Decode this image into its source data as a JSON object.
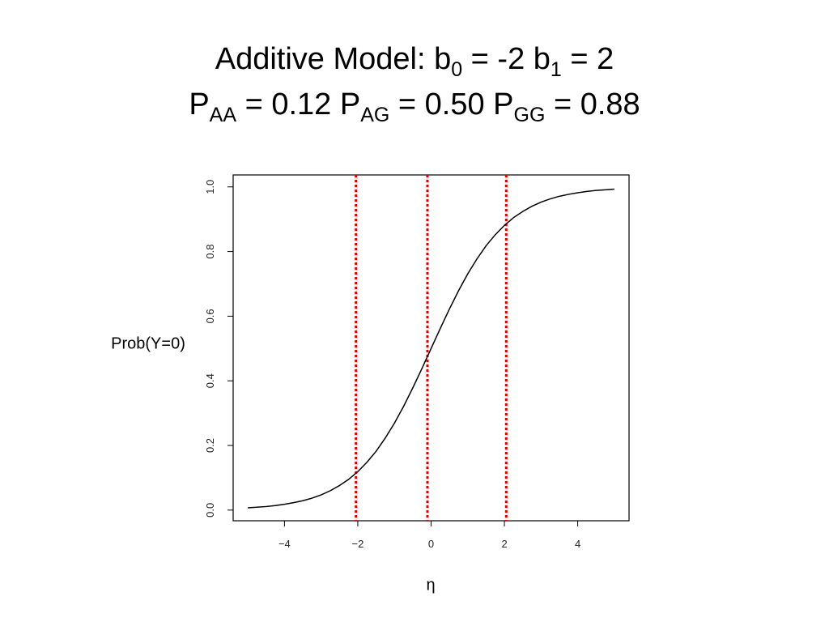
{
  "chart_data": {
    "type": "line",
    "title": [
      [
        "Additive Model: b",
        "0",
        " = -2 b",
        "1",
        " = 2"
      ],
      [
        "P",
        "AA",
        " = 0.12 P",
        "AG",
        " = 0.50 P",
        "GG",
        " = 0.88"
      ]
    ],
    "x_label": "η",
    "y_label": "Prob(Y=0)",
    "x": [
      -5,
      -4.75,
      -4.5,
      -4.25,
      -4,
      -3.75,
      -3.5,
      -3.25,
      -3,
      -2.75,
      -2.5,
      -2.25,
      -2,
      -1.75,
      -1.5,
      -1.25,
      -1,
      -0.75,
      -0.5,
      -0.25,
      0,
      0.25,
      0.5,
      0.75,
      1,
      1.25,
      1.5,
      1.75,
      2,
      2.25,
      2.5,
      2.75,
      3,
      3.25,
      3.5,
      3.75,
      4,
      4.25,
      4.5,
      4.75,
      5
    ],
    "series": [
      {
        "color": "#000000",
        "values": [
          0.007,
          0.009,
          0.011,
          0.014,
          0.018,
          0.023,
          0.029,
          0.037,
          0.047,
          0.06,
          0.076,
          0.095,
          0.119,
          0.148,
          0.182,
          0.223,
          0.269,
          0.321,
          0.378,
          0.438,
          0.5,
          0.562,
          0.622,
          0.679,
          0.731,
          0.777,
          0.818,
          0.852,
          0.881,
          0.905,
          0.924,
          0.94,
          0.953,
          0.963,
          0.971,
          0.977,
          0.982,
          0.986,
          0.989,
          0.991,
          0.993
        ]
      }
    ],
    "vlines": {
      "x": [
        -2.05,
        -0.1,
        2.05
      ],
      "color": "#e00000"
    },
    "xlim": [
      -5.4,
      5.4
    ],
    "ylim": [
      -0.033,
      1.037
    ],
    "xticks": [
      {
        "value": -4,
        "label": "−4"
      },
      {
        "value": -2,
        "label": "−2"
      },
      0,
      2,
      4
    ],
    "yticks": [
      {
        "value": 0,
        "label": "0.0"
      },
      0.2,
      0.4,
      0.6,
      0.8,
      {
        "value": 1,
        "label": "1.0"
      }
    ]
  }
}
